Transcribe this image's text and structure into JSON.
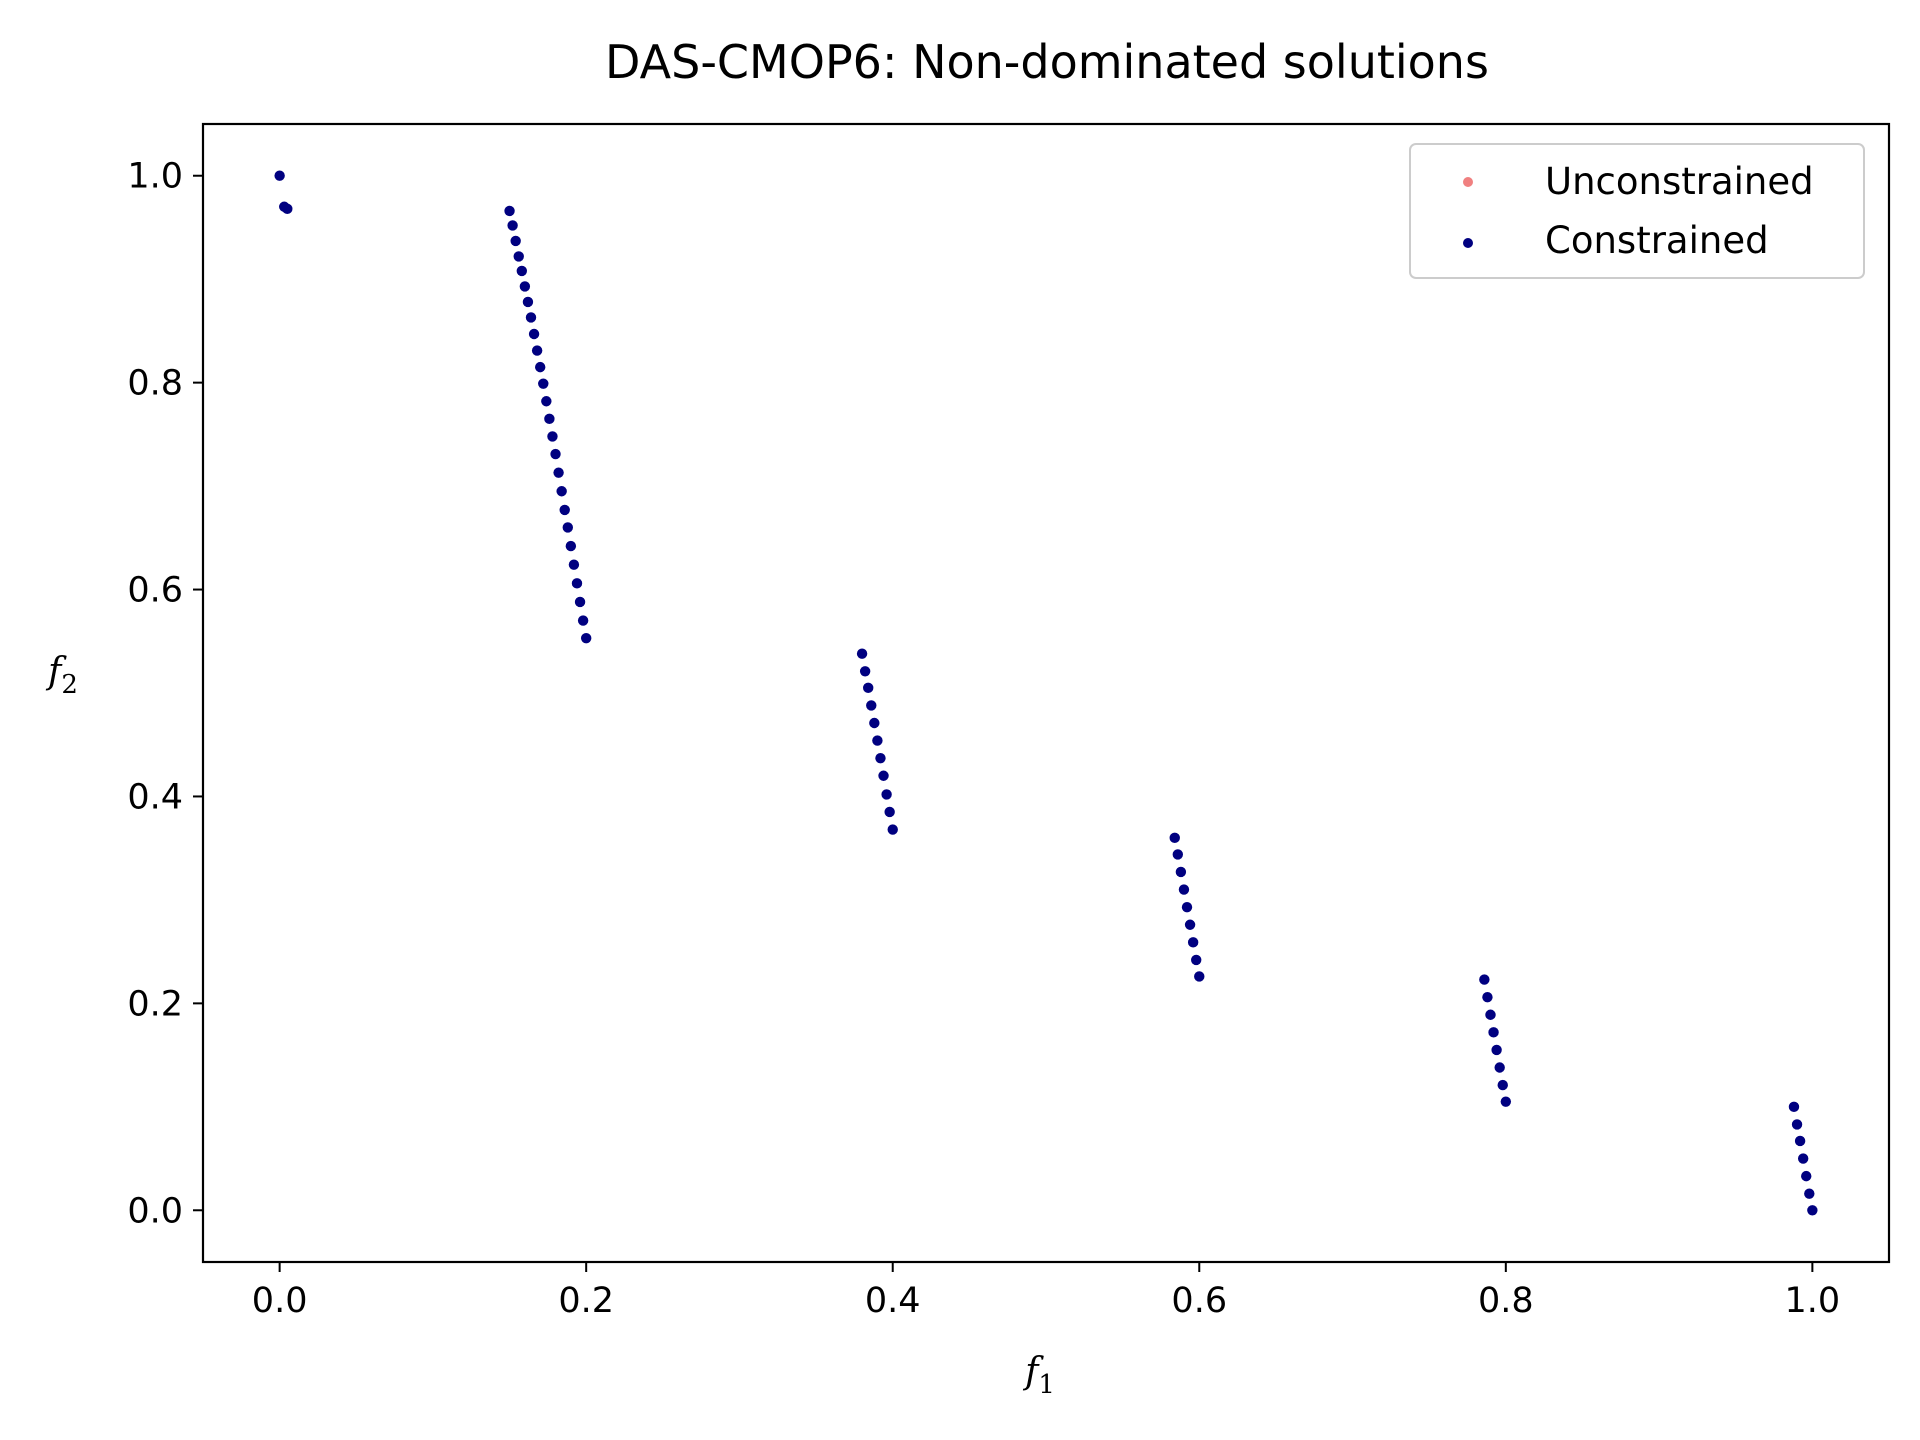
{
  "chart_data": {
    "type": "scatter",
    "title": "DAS-CMOP6: Non-dominated solutions",
    "xlabel_base": "f",
    "xlabel_sub": "1",
    "ylabel_base": "f",
    "ylabel_sub": "2",
    "xlim": [
      -0.05,
      1.05
    ],
    "ylim": [
      -0.05,
      1.05
    ],
    "xticks": [
      0.0,
      0.2,
      0.4,
      0.6,
      0.8,
      1.0
    ],
    "yticks": [
      0.0,
      0.2,
      0.4,
      0.6,
      0.8,
      1.0
    ],
    "xtick_labels": [
      "0.0",
      "0.2",
      "0.4",
      "0.6",
      "0.8",
      "1.0"
    ],
    "ytick_labels": [
      "0.0",
      "0.2",
      "0.4",
      "0.6",
      "0.8",
      "1.0"
    ],
    "grid": false,
    "legend_position": "top-right",
    "series": [
      {
        "name": "Unconstrained",
        "color": "#f08080",
        "points": []
      },
      {
        "name": "Constrained",
        "color": "#000080",
        "points": [
          [
            0.0,
            1.0
          ],
          [
            0.003,
            0.97
          ],
          [
            0.005,
            0.968
          ],
          [
            0.15,
            0.966
          ],
          [
            0.152,
            0.952
          ],
          [
            0.154,
            0.937
          ],
          [
            0.156,
            0.922
          ],
          [
            0.158,
            0.908
          ],
          [
            0.16,
            0.893
          ],
          [
            0.162,
            0.878
          ],
          [
            0.164,
            0.863
          ],
          [
            0.166,
            0.847
          ],
          [
            0.168,
            0.831
          ],
          [
            0.17,
            0.815
          ],
          [
            0.172,
            0.799
          ],
          [
            0.174,
            0.782
          ],
          [
            0.176,
            0.765
          ],
          [
            0.178,
            0.748
          ],
          [
            0.18,
            0.731
          ],
          [
            0.182,
            0.713
          ],
          [
            0.184,
            0.695
          ],
          [
            0.186,
            0.677
          ],
          [
            0.188,
            0.66
          ],
          [
            0.19,
            0.642
          ],
          [
            0.192,
            0.624
          ],
          [
            0.194,
            0.606
          ],
          [
            0.196,
            0.588
          ],
          [
            0.198,
            0.57
          ],
          [
            0.2,
            0.553
          ],
          [
            0.38,
            0.538
          ],
          [
            0.382,
            0.521
          ],
          [
            0.384,
            0.505
          ],
          [
            0.386,
            0.488
          ],
          [
            0.388,
            0.471
          ],
          [
            0.39,
            0.454
          ],
          [
            0.392,
            0.437
          ],
          [
            0.394,
            0.42
          ],
          [
            0.396,
            0.402
          ],
          [
            0.398,
            0.385
          ],
          [
            0.4,
            0.368
          ],
          [
            0.584,
            0.36
          ],
          [
            0.586,
            0.344
          ],
          [
            0.588,
            0.327
          ],
          [
            0.59,
            0.31
          ],
          [
            0.592,
            0.293
          ],
          [
            0.594,
            0.276
          ],
          [
            0.596,
            0.259
          ],
          [
            0.598,
            0.242
          ],
          [
            0.6,
            0.226
          ],
          [
            0.786,
            0.223
          ],
          [
            0.788,
            0.206
          ],
          [
            0.79,
            0.189
          ],
          [
            0.792,
            0.172
          ],
          [
            0.794,
            0.155
          ],
          [
            0.796,
            0.138
          ],
          [
            0.798,
            0.121
          ],
          [
            0.8,
            0.105
          ],
          [
            0.988,
            0.1
          ],
          [
            0.99,
            0.083
          ],
          [
            0.992,
            0.067
          ],
          [
            0.994,
            0.05
          ],
          [
            0.996,
            0.033
          ],
          [
            0.998,
            0.016
          ],
          [
            1.0,
            0.0
          ]
        ]
      }
    ]
  }
}
